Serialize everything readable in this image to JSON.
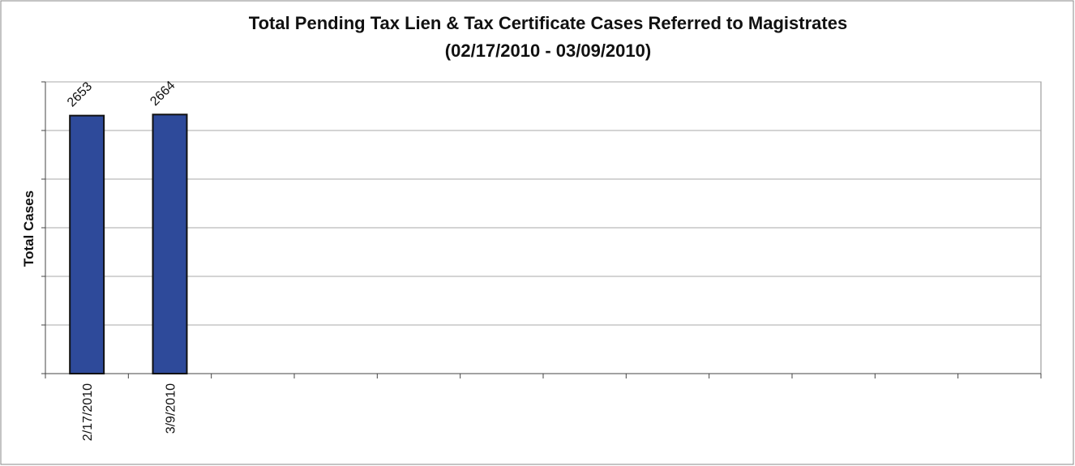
{
  "chart_data": {
    "type": "bar",
    "title": "Total Pending Tax Lien & Tax Certificate Cases Referred to Magistrates",
    "subtitle": "(02/17/2010 - 03/09/2010)",
    "y_label": "Total Cases",
    "categories": [
      "2/17/2010",
      "3/9/2010",
      null,
      null,
      null,
      null,
      null,
      null,
      null,
      null,
      null,
      null
    ],
    "values": [
      2653,
      2664,
      null,
      null,
      null,
      null,
      null,
      null,
      null,
      null,
      null,
      null
    ],
    "color": "#2e4a9a",
    "ylim": [
      0,
      3000
    ],
    "yticks": [
      0,
      500,
      1000,
      1500,
      2000,
      2500,
      3000
    ],
    "grid": true
  }
}
